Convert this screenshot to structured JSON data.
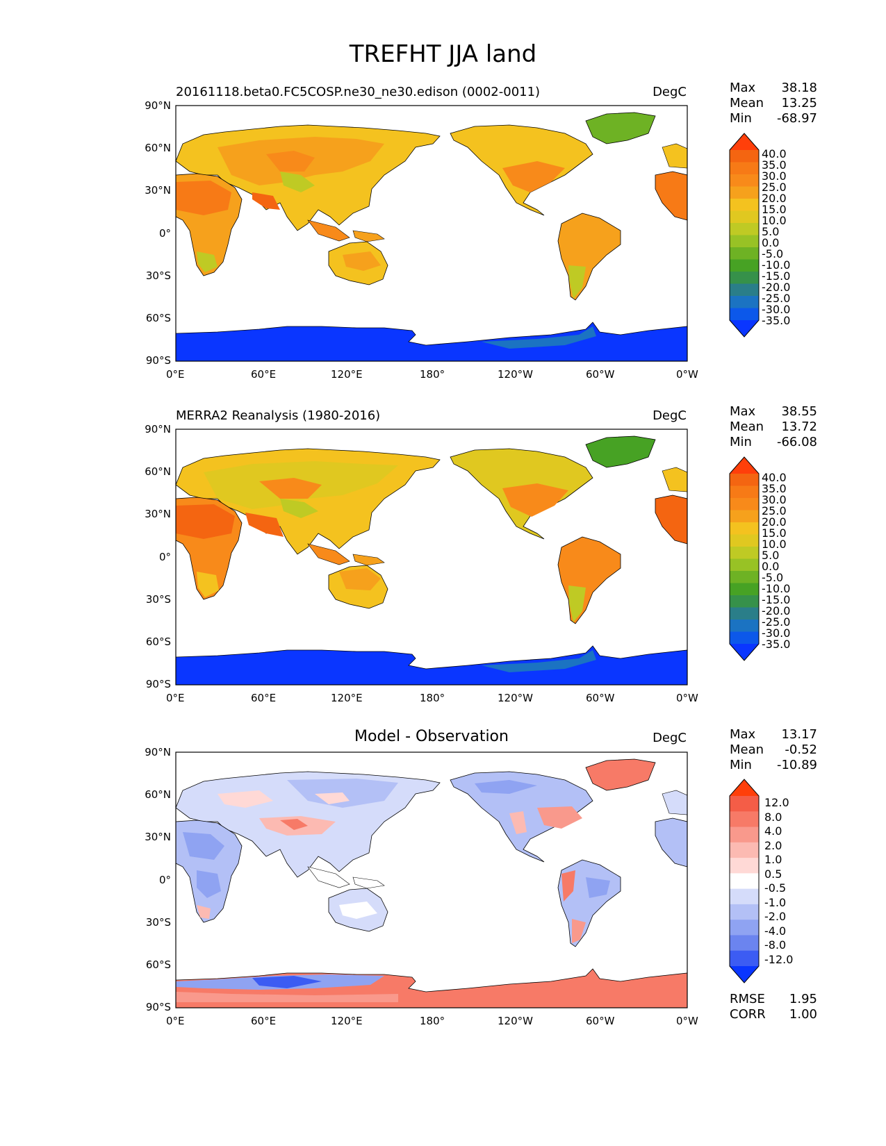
{
  "figure": {
    "title": "TREFHT JJA land"
  },
  "axes": {
    "lat_labels": [
      "90°N",
      "60°N",
      "30°N",
      "0°",
      "30°S",
      "60°S",
      "90°S"
    ],
    "lon_labels": [
      "0°E",
      "60°E",
      "120°E",
      "180°",
      "120°W",
      "60°W",
      "0°W"
    ]
  },
  "colors": {
    "temp_scale": [
      "#0a36ff",
      "#0c58ea",
      "#1b73c2",
      "#2a7e89",
      "#36914a",
      "#47a224",
      "#6eb224",
      "#98c225",
      "#bfca24",
      "#e0c820",
      "#f4c21f",
      "#f6a11c",
      "#f88a1a",
      "#f77a16",
      "#f46511",
      "#ff3f0a"
    ],
    "diff_scale": [
      "#0a36ff",
      "#3c5cf3",
      "#6b84ef",
      "#8fa3f2",
      "#b3c0f6",
      "#d5dcfa",
      "#ffffff",
      "#ffd9d6",
      "#fcbab2",
      "#f9998c",
      "#f77a67",
      "#f45d47",
      "#ff3f0a"
    ],
    "land_edge": "#000000",
    "ocean": "#ffffff"
  },
  "panels": [
    {
      "id": "test",
      "title": "20161118.beta0.FC5COSP.ne30_ne30.edison (0002-0011)",
      "units": "DegC",
      "stats": [
        {
          "label": "Max",
          "value": "38.18"
        },
        {
          "label": "Mean",
          "value": "13.25"
        },
        {
          "label": "Min",
          "value": "-68.97"
        }
      ],
      "colorbar_labels": [
        "40.0",
        "35.0",
        "30.0",
        "25.0",
        "20.0",
        "15.0",
        "10.0",
        "5.0",
        "0.0",
        "-5.0",
        "-10.0",
        "-15.0",
        "-20.0",
        "-25.0",
        "-30.0",
        "-35.0"
      ]
    },
    {
      "id": "reference",
      "title": "MERRA2 Reanalysis (1980-2016)",
      "units": "DegC",
      "stats": [
        {
          "label": "Max",
          "value": "38.55"
        },
        {
          "label": "Mean",
          "value": "13.72"
        },
        {
          "label": "Min",
          "value": "-66.08"
        }
      ],
      "colorbar_labels": [
        "40.0",
        "35.0",
        "30.0",
        "25.0",
        "20.0",
        "15.0",
        "10.0",
        "5.0",
        "0.0",
        "-5.0",
        "-10.0",
        "-15.0",
        "-20.0",
        "-25.0",
        "-30.0",
        "-35.0"
      ]
    },
    {
      "id": "diff",
      "title": "Model - Observation",
      "units": "DegC",
      "stats": [
        {
          "label": "Max",
          "value": "13.17"
        },
        {
          "label": "Mean",
          "value": "-0.52"
        },
        {
          "label": "Min",
          "value": "-10.89"
        }
      ],
      "colorbar_labels": [
        "12.0",
        "8.0",
        "4.0",
        "2.0",
        "1.0",
        "0.5",
        "-0.5",
        "-1.0",
        "-2.0",
        "-4.0",
        "-8.0",
        "-12.0"
      ],
      "metrics": [
        {
          "label": "RMSE",
          "value": "1.95"
        },
        {
          "label": "CORR",
          "value": "1.00"
        }
      ]
    }
  ]
}
